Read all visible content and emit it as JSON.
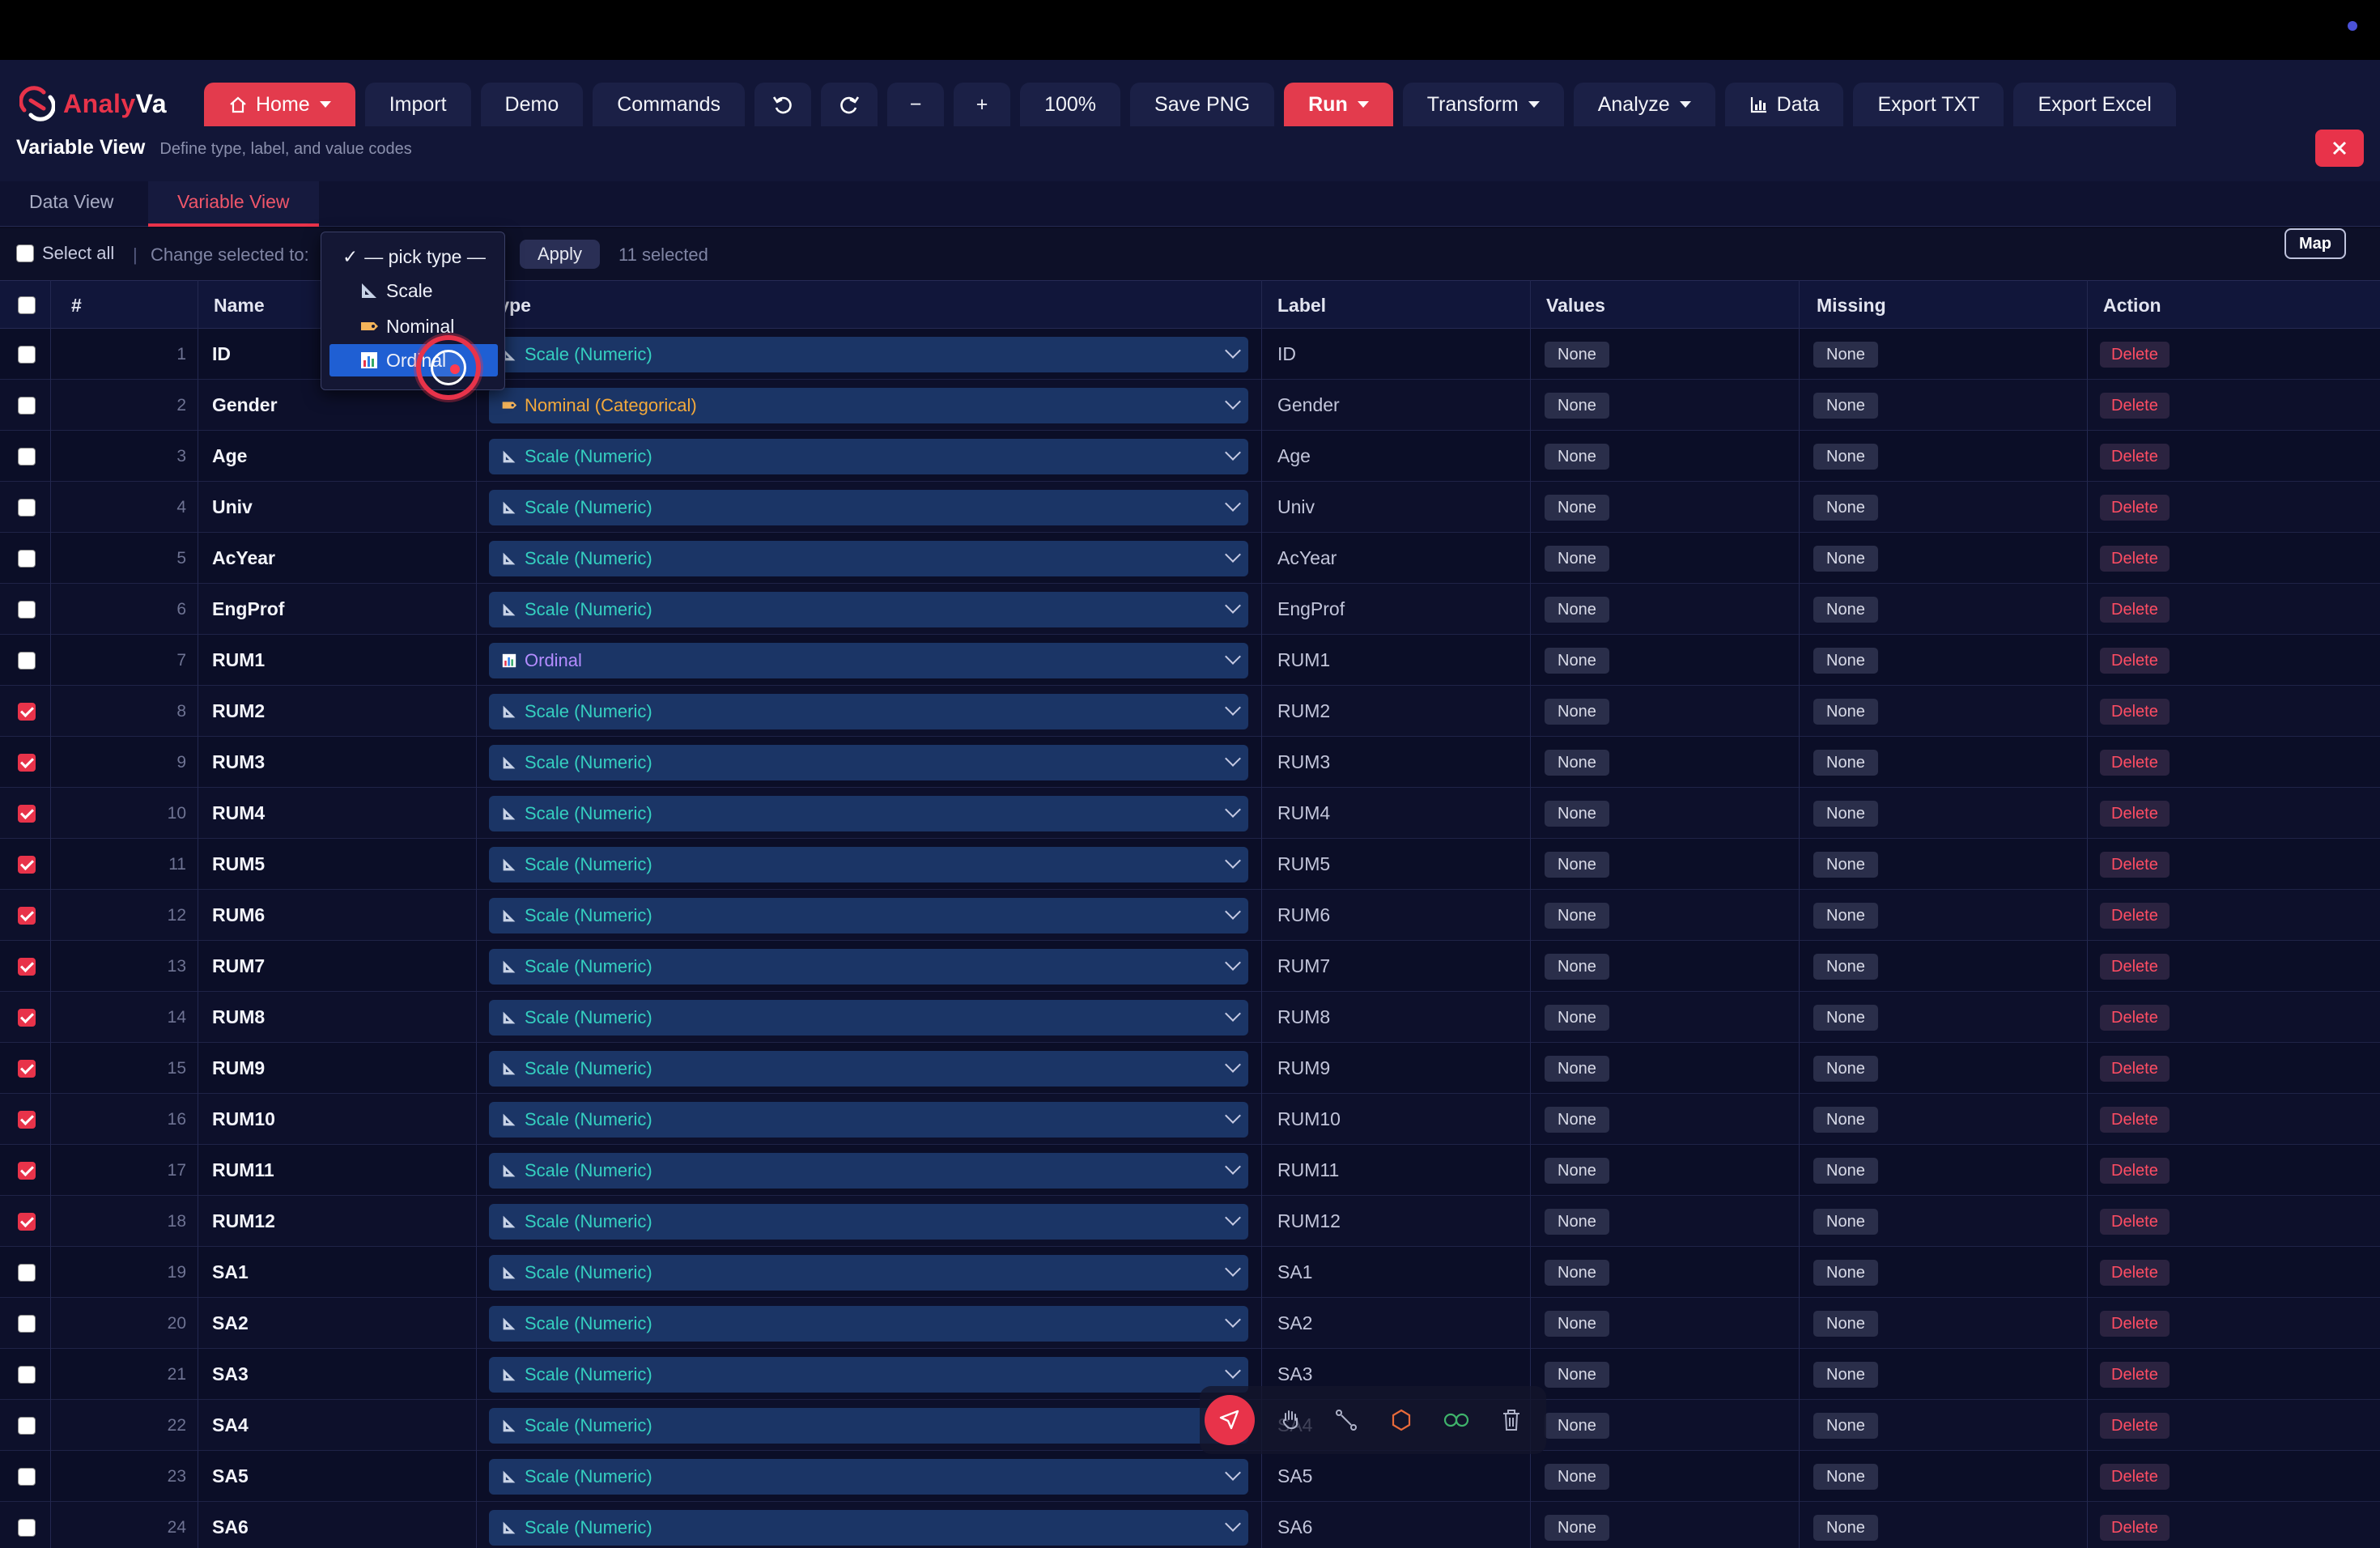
{
  "app": {
    "logo_part1": "Analy",
    "logo_part2": "Va"
  },
  "toolbar": {
    "home": "Home",
    "import": "Import",
    "demo": "Demo",
    "commands": "Commands",
    "zoom_out": "−",
    "zoom_in": "+",
    "zoom_level": "100%",
    "save_png": "Save PNG",
    "run": "Run",
    "transform": "Transform",
    "analyze": "Analyze",
    "data": "Data",
    "export_txt": "Export TXT",
    "export_excel": "Export Excel"
  },
  "page": {
    "title": "Variable View",
    "subtitle": "Define type, label, and value codes"
  },
  "tabs": {
    "data_view": "Data View",
    "variable_view": "Variable View"
  },
  "controls": {
    "select_all": "Select all",
    "separator": "|",
    "change_selected": "Change selected to:",
    "apply": "Apply",
    "selected_count": "11 selected",
    "map": "Map"
  },
  "dropdown": {
    "placeholder": "— pick type —",
    "scale": "Scale",
    "nominal": "Nominal",
    "ordinal": "Ordinal"
  },
  "table": {
    "headers": {
      "num": "#",
      "name": "Name",
      "type": "Type",
      "label": "Label",
      "values": "Values",
      "missing": "Missing",
      "action": "Action"
    },
    "rows": [
      {
        "num": "1",
        "name": "ID",
        "type": "Scale (Numeric)",
        "kind": "scale",
        "label": "ID",
        "values": "None",
        "missing": "None",
        "action": "Delete",
        "checked": false
      },
      {
        "num": "2",
        "name": "Gender",
        "type": "Nominal (Categorical)",
        "kind": "nominal",
        "label": "Gender",
        "values": "None",
        "missing": "None",
        "action": "Delete",
        "checked": false
      },
      {
        "num": "3",
        "name": "Age",
        "type": "Scale (Numeric)",
        "kind": "scale",
        "label": "Age",
        "values": "None",
        "missing": "None",
        "action": "Delete",
        "checked": false
      },
      {
        "num": "4",
        "name": "Univ",
        "type": "Scale (Numeric)",
        "kind": "scale",
        "label": "Univ",
        "values": "None",
        "missing": "None",
        "action": "Delete",
        "checked": false
      },
      {
        "num": "5",
        "name": "AcYear",
        "type": "Scale (Numeric)",
        "kind": "scale",
        "label": "AcYear",
        "values": "None",
        "missing": "None",
        "action": "Delete",
        "checked": false
      },
      {
        "num": "6",
        "name": "EngProf",
        "type": "Scale (Numeric)",
        "kind": "scale",
        "label": "EngProf",
        "values": "None",
        "missing": "None",
        "action": "Delete",
        "checked": false
      },
      {
        "num": "7",
        "name": "RUM1",
        "type": "Ordinal",
        "kind": "ordinal",
        "label": "RUM1",
        "values": "None",
        "missing": "None",
        "action": "Delete",
        "checked": false
      },
      {
        "num": "8",
        "name": "RUM2",
        "type": "Scale (Numeric)",
        "kind": "scale",
        "label": "RUM2",
        "values": "None",
        "missing": "None",
        "action": "Delete",
        "checked": true
      },
      {
        "num": "9",
        "name": "RUM3",
        "type": "Scale (Numeric)",
        "kind": "scale",
        "label": "RUM3",
        "values": "None",
        "missing": "None",
        "action": "Delete",
        "checked": true
      },
      {
        "num": "10",
        "name": "RUM4",
        "type": "Scale (Numeric)",
        "kind": "scale",
        "label": "RUM4",
        "values": "None",
        "missing": "None",
        "action": "Delete",
        "checked": true
      },
      {
        "num": "11",
        "name": "RUM5",
        "type": "Scale (Numeric)",
        "kind": "scale",
        "label": "RUM5",
        "values": "None",
        "missing": "None",
        "action": "Delete",
        "checked": true
      },
      {
        "num": "12",
        "name": "RUM6",
        "type": "Scale (Numeric)",
        "kind": "scale",
        "label": "RUM6",
        "values": "None",
        "missing": "None",
        "action": "Delete",
        "checked": true
      },
      {
        "num": "13",
        "name": "RUM7",
        "type": "Scale (Numeric)",
        "kind": "scale",
        "label": "RUM7",
        "values": "None",
        "missing": "None",
        "action": "Delete",
        "checked": true
      },
      {
        "num": "14",
        "name": "RUM8",
        "type": "Scale (Numeric)",
        "kind": "scale",
        "label": "RUM8",
        "values": "None",
        "missing": "None",
        "action": "Delete",
        "checked": true
      },
      {
        "num": "15",
        "name": "RUM9",
        "type": "Scale (Numeric)",
        "kind": "scale",
        "label": "RUM9",
        "values": "None",
        "missing": "None",
        "action": "Delete",
        "checked": true
      },
      {
        "num": "16",
        "name": "RUM10",
        "type": "Scale (Numeric)",
        "kind": "scale",
        "label": "RUM10",
        "values": "None",
        "missing": "None",
        "action": "Delete",
        "checked": true
      },
      {
        "num": "17",
        "name": "RUM11",
        "type": "Scale (Numeric)",
        "kind": "scale",
        "label": "RUM11",
        "values": "None",
        "missing": "None",
        "action": "Delete",
        "checked": true
      },
      {
        "num": "18",
        "name": "RUM12",
        "type": "Scale (Numeric)",
        "kind": "scale",
        "label": "RUM12",
        "values": "None",
        "missing": "None",
        "action": "Delete",
        "checked": true
      },
      {
        "num": "19",
        "name": "SA1",
        "type": "Scale (Numeric)",
        "kind": "scale",
        "label": "SA1",
        "values": "None",
        "missing": "None",
        "action": "Delete",
        "checked": false
      },
      {
        "num": "20",
        "name": "SA2",
        "type": "Scale (Numeric)",
        "kind": "scale",
        "label": "SA2",
        "values": "None",
        "missing": "None",
        "action": "Delete",
        "checked": false
      },
      {
        "num": "21",
        "name": "SA3",
        "type": "Scale (Numeric)",
        "kind": "scale",
        "label": "SA3",
        "values": "None",
        "missing": "None",
        "action": "Delete",
        "checked": false
      },
      {
        "num": "22",
        "name": "SA4",
        "type": "Scale (Numeric)",
        "kind": "scale",
        "label": "SA4",
        "values": "None",
        "missing": "None",
        "action": "Delete",
        "checked": false
      },
      {
        "num": "23",
        "name": "SA5",
        "type": "Scale (Numeric)",
        "kind": "scale",
        "label": "SA5",
        "values": "None",
        "missing": "None",
        "action": "Delete",
        "checked": false
      },
      {
        "num": "24",
        "name": "SA6",
        "type": "Scale (Numeric)",
        "kind": "scale",
        "label": "SA6",
        "values": "None",
        "missing": "None",
        "action": "Delete",
        "checked": false
      }
    ]
  },
  "colors": {
    "accent": "#e8334a",
    "scale": "#35d0c0",
    "nominal": "#f3a93c",
    "ordinal": "#b48cff",
    "select_bg": "#1b3566"
  },
  "icons": {
    "scale": "ruler-icon",
    "nominal": "tag-icon",
    "ordinal": "bar-chart-icon"
  }
}
